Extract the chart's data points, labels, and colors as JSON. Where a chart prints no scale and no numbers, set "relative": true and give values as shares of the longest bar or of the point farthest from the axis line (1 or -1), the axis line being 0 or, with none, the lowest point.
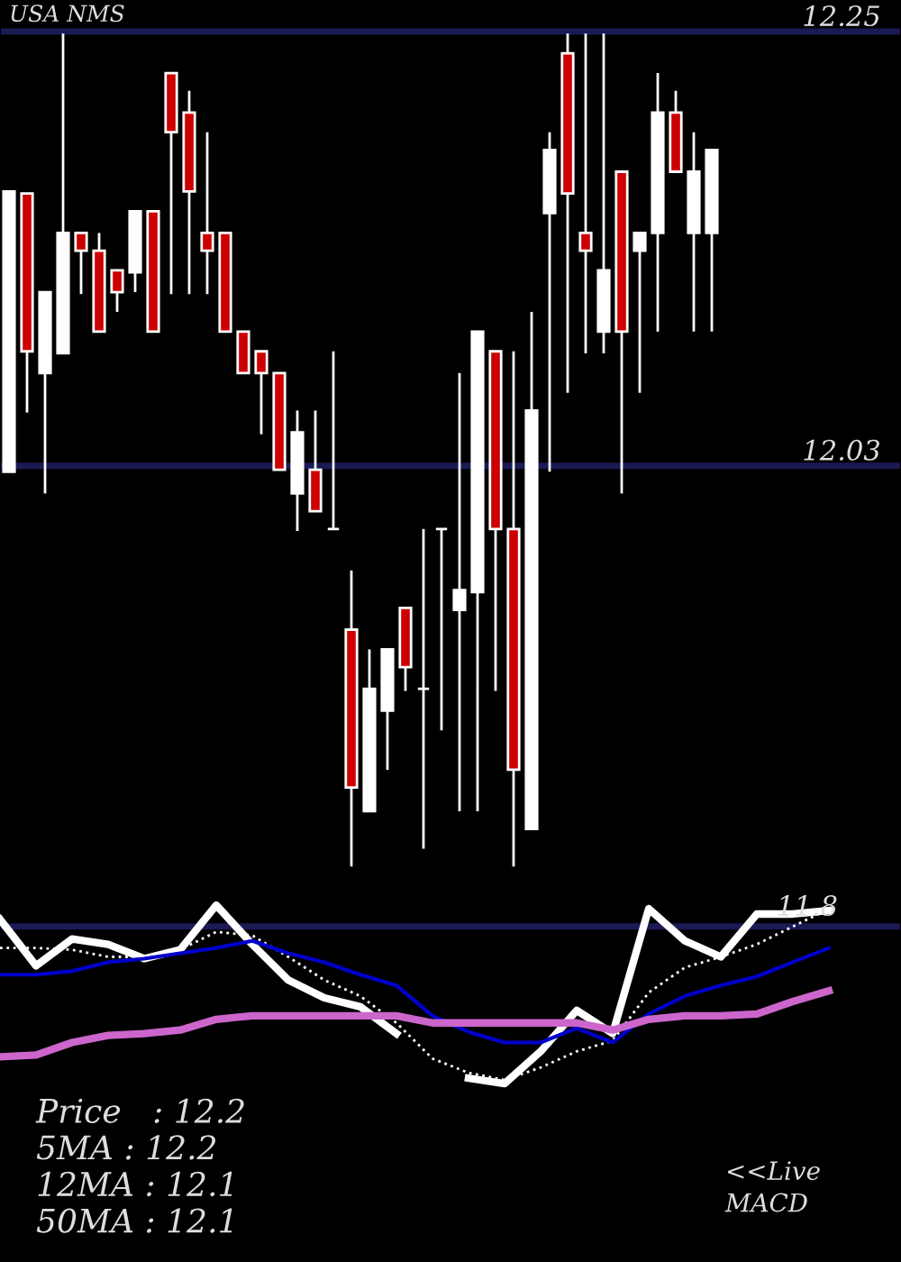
{
  "chart_data": [
    {
      "type": "candlestick",
      "title": "USA NMS",
      "categories": [
        null,
        null,
        null,
        null,
        null,
        null,
        null,
        null,
        null,
        null,
        null,
        null,
        null,
        null,
        null,
        null,
        null,
        null,
        null,
        null,
        null,
        null,
        null,
        null,
        null,
        null,
        null,
        null,
        null,
        null,
        null,
        null,
        null,
        null,
        null,
        null,
        null,
        null,
        null,
        null
      ],
      "ohlc": [
        [
          12.027,
          12.169,
          12.027,
          12.169
        ],
        [
          12.168,
          12.168,
          12.057,
          12.088
        ],
        [
          12.077,
          12.118,
          12.016,
          12.118
        ],
        [
          12.087,
          12.249,
          12.087,
          12.148
        ],
        [
          12.148,
          12.148,
          12.117,
          12.139
        ],
        [
          12.139,
          12.148,
          12.098,
          12.098
        ],
        [
          12.129,
          12.129,
          12.108,
          12.118
        ],
        [
          12.128,
          12.159,
          12.118,
          12.159
        ],
        [
          12.159,
          12.159,
          12.098,
          12.098
        ],
        [
          12.229,
          12.229,
          12.117,
          12.199
        ],
        [
          12.209,
          12.22,
          12.117,
          12.169
        ],
        [
          12.148,
          12.199,
          12.117,
          12.139
        ],
        [
          12.148,
          12.148,
          12.098,
          12.098
        ],
        [
          12.098,
          12.098,
          12.077,
          12.077
        ],
        [
          12.088,
          12.088,
          12.046,
          12.077
        ],
        [
          12.077,
          12.077,
          12.028,
          12.028
        ],
        [
          12.016,
          12.058,
          11.997,
          12.047
        ],
        [
          12.028,
          12.058,
          12.007,
          12.007
        ],
        [
          11.998,
          12.088,
          11.998,
          11.998
        ],
        [
          11.947,
          11.977,
          11.827,
          11.867
        ],
        [
          11.855,
          11.937,
          11.855,
          11.917
        ],
        [
          11.906,
          11.937,
          11.876,
          11.937
        ],
        [
          11.958,
          11.958,
          11.916,
          11.928
        ],
        [
          11.917,
          11.998,
          11.836,
          11.917
        ],
        [
          11.998,
          11.998,
          11.896,
          11.998
        ],
        [
          11.957,
          12.077,
          11.855,
          11.967
        ],
        [
          11.966,
          12.098,
          11.855,
          12.098
        ],
        [
          12.088,
          12.088,
          11.916,
          11.998
        ],
        [
          11.998,
          12.088,
          11.827,
          11.876
        ],
        [
          11.846,
          12.108,
          11.846,
          12.058
        ],
        [
          12.158,
          12.199,
          12.027,
          12.19
        ],
        [
          12.239,
          12.249,
          12.067,
          12.168
        ],
        [
          12.148,
          12.249,
          12.087,
          12.139
        ],
        [
          12.098,
          12.249,
          12.087,
          12.129
        ],
        [
          12.179,
          12.179,
          12.016,
          12.098
        ],
        [
          12.139,
          12.148,
          12.067,
          12.148
        ],
        [
          12.148,
          12.229,
          12.098,
          12.209
        ],
        [
          12.209,
          12.22,
          12.179,
          12.179
        ],
        [
          12.148,
          12.199,
          12.098,
          12.179
        ],
        [
          12.148,
          12.19,
          12.098,
          12.19
        ]
      ],
      "colors": [
        "#ffffff",
        "#cc0000",
        "#ffffff",
        "#ffffff",
        "#cc0000",
        "#cc0000",
        "#cc0000",
        "#ffffff",
        "#cc0000",
        "#cc0000",
        "#cc0000",
        "#cc0000",
        "#cc0000",
        "#cc0000",
        "#cc0000",
        "#cc0000",
        "#ffffff",
        "#cc0000",
        "#ffffff",
        "#cc0000",
        "#ffffff",
        "#ffffff",
        "#cc0000",
        "#ffffff",
        "#ffffff",
        "#ffffff",
        "#ffffff",
        "#cc0000",
        "#cc0000",
        "#ffffff",
        "#ffffff",
        "#cc0000",
        "#cc0000",
        "#ffffff",
        "#cc0000",
        "#ffffff",
        "#ffffff",
        "#cc0000",
        "#ffffff",
        "#ffffff"
      ],
      "ylim": [
        11.821,
        12.266
      ],
      "yticks": [
        12.25,
        12.03
      ],
      "grid": "y"
    },
    {
      "type": "line",
      "relative": true,
      "categories": [
        null,
        null,
        null,
        null,
        null,
        null,
        null,
        null,
        null,
        null,
        null,
        null,
        null,
        null,
        null,
        null,
        null,
        null,
        null,
        null,
        null,
        null,
        null,
        null
      ],
      "series": [
        {
          "color": "#ffffff",
          "line_style": "solid",
          "values": [
            0.92,
            0.66,
            0.81,
            0.78,
            0.7,
            0.75,
            1.0,
            0.78,
            0.58,
            0.48,
            0.43,
            0.28,
            null,
            0.03,
            0.0,
            0.18,
            0.41,
            0.28,
            0.98,
            0.8,
            0.71,
            0.95,
            0.95,
            0.97
          ]
        },
        {
          "color": "#ffffff",
          "line_style": "dotted",
          "values": [
            0.76,
            0.76,
            0.75,
            0.71,
            0.71,
            0.75,
            0.85,
            0.83,
            0.71,
            0.58,
            0.49,
            0.34,
            0.14,
            0.06,
            0.02,
            0.09,
            0.18,
            0.24,
            0.51,
            0.65,
            0.71,
            0.78,
            0.88,
            0.98
          ]
        },
        {
          "color": "#0000cc",
          "line_style": "solid",
          "values": [
            0.61,
            0.61,
            0.63,
            0.68,
            0.7,
            0.73,
            0.76,
            0.8,
            0.73,
            0.68,
            0.61,
            0.55,
            0.38,
            0.29,
            0.23,
            0.23,
            0.31,
            0.23,
            0.39,
            0.49,
            0.55,
            0.6,
            0.68,
            0.76
          ]
        },
        {
          "color": "#cc66cc",
          "line_style": "solid",
          "values": [
            0.15,
            0.16,
            0.23,
            0.27,
            0.28,
            0.3,
            0.36,
            0.38,
            0.38,
            0.38,
            0.38,
            0.38,
            0.34,
            0.34,
            0.34,
            0.34,
            0.34,
            0.3,
            0.36,
            0.38,
            0.38,
            0.39,
            0.46,
            0.52
          ]
        }
      ],
      "ref_lines": [
        {
          "axis": "y",
          "value": 0.88,
          "color": "#1a1a55"
        }
      ],
      "annotations": [
        "11.8",
        "Price   : 12.2",
        "5MA : 12.2",
        "12MA : 12.1",
        "50MA : 12.1",
        "<<Live\nMACD"
      ]
    }
  ]
}
